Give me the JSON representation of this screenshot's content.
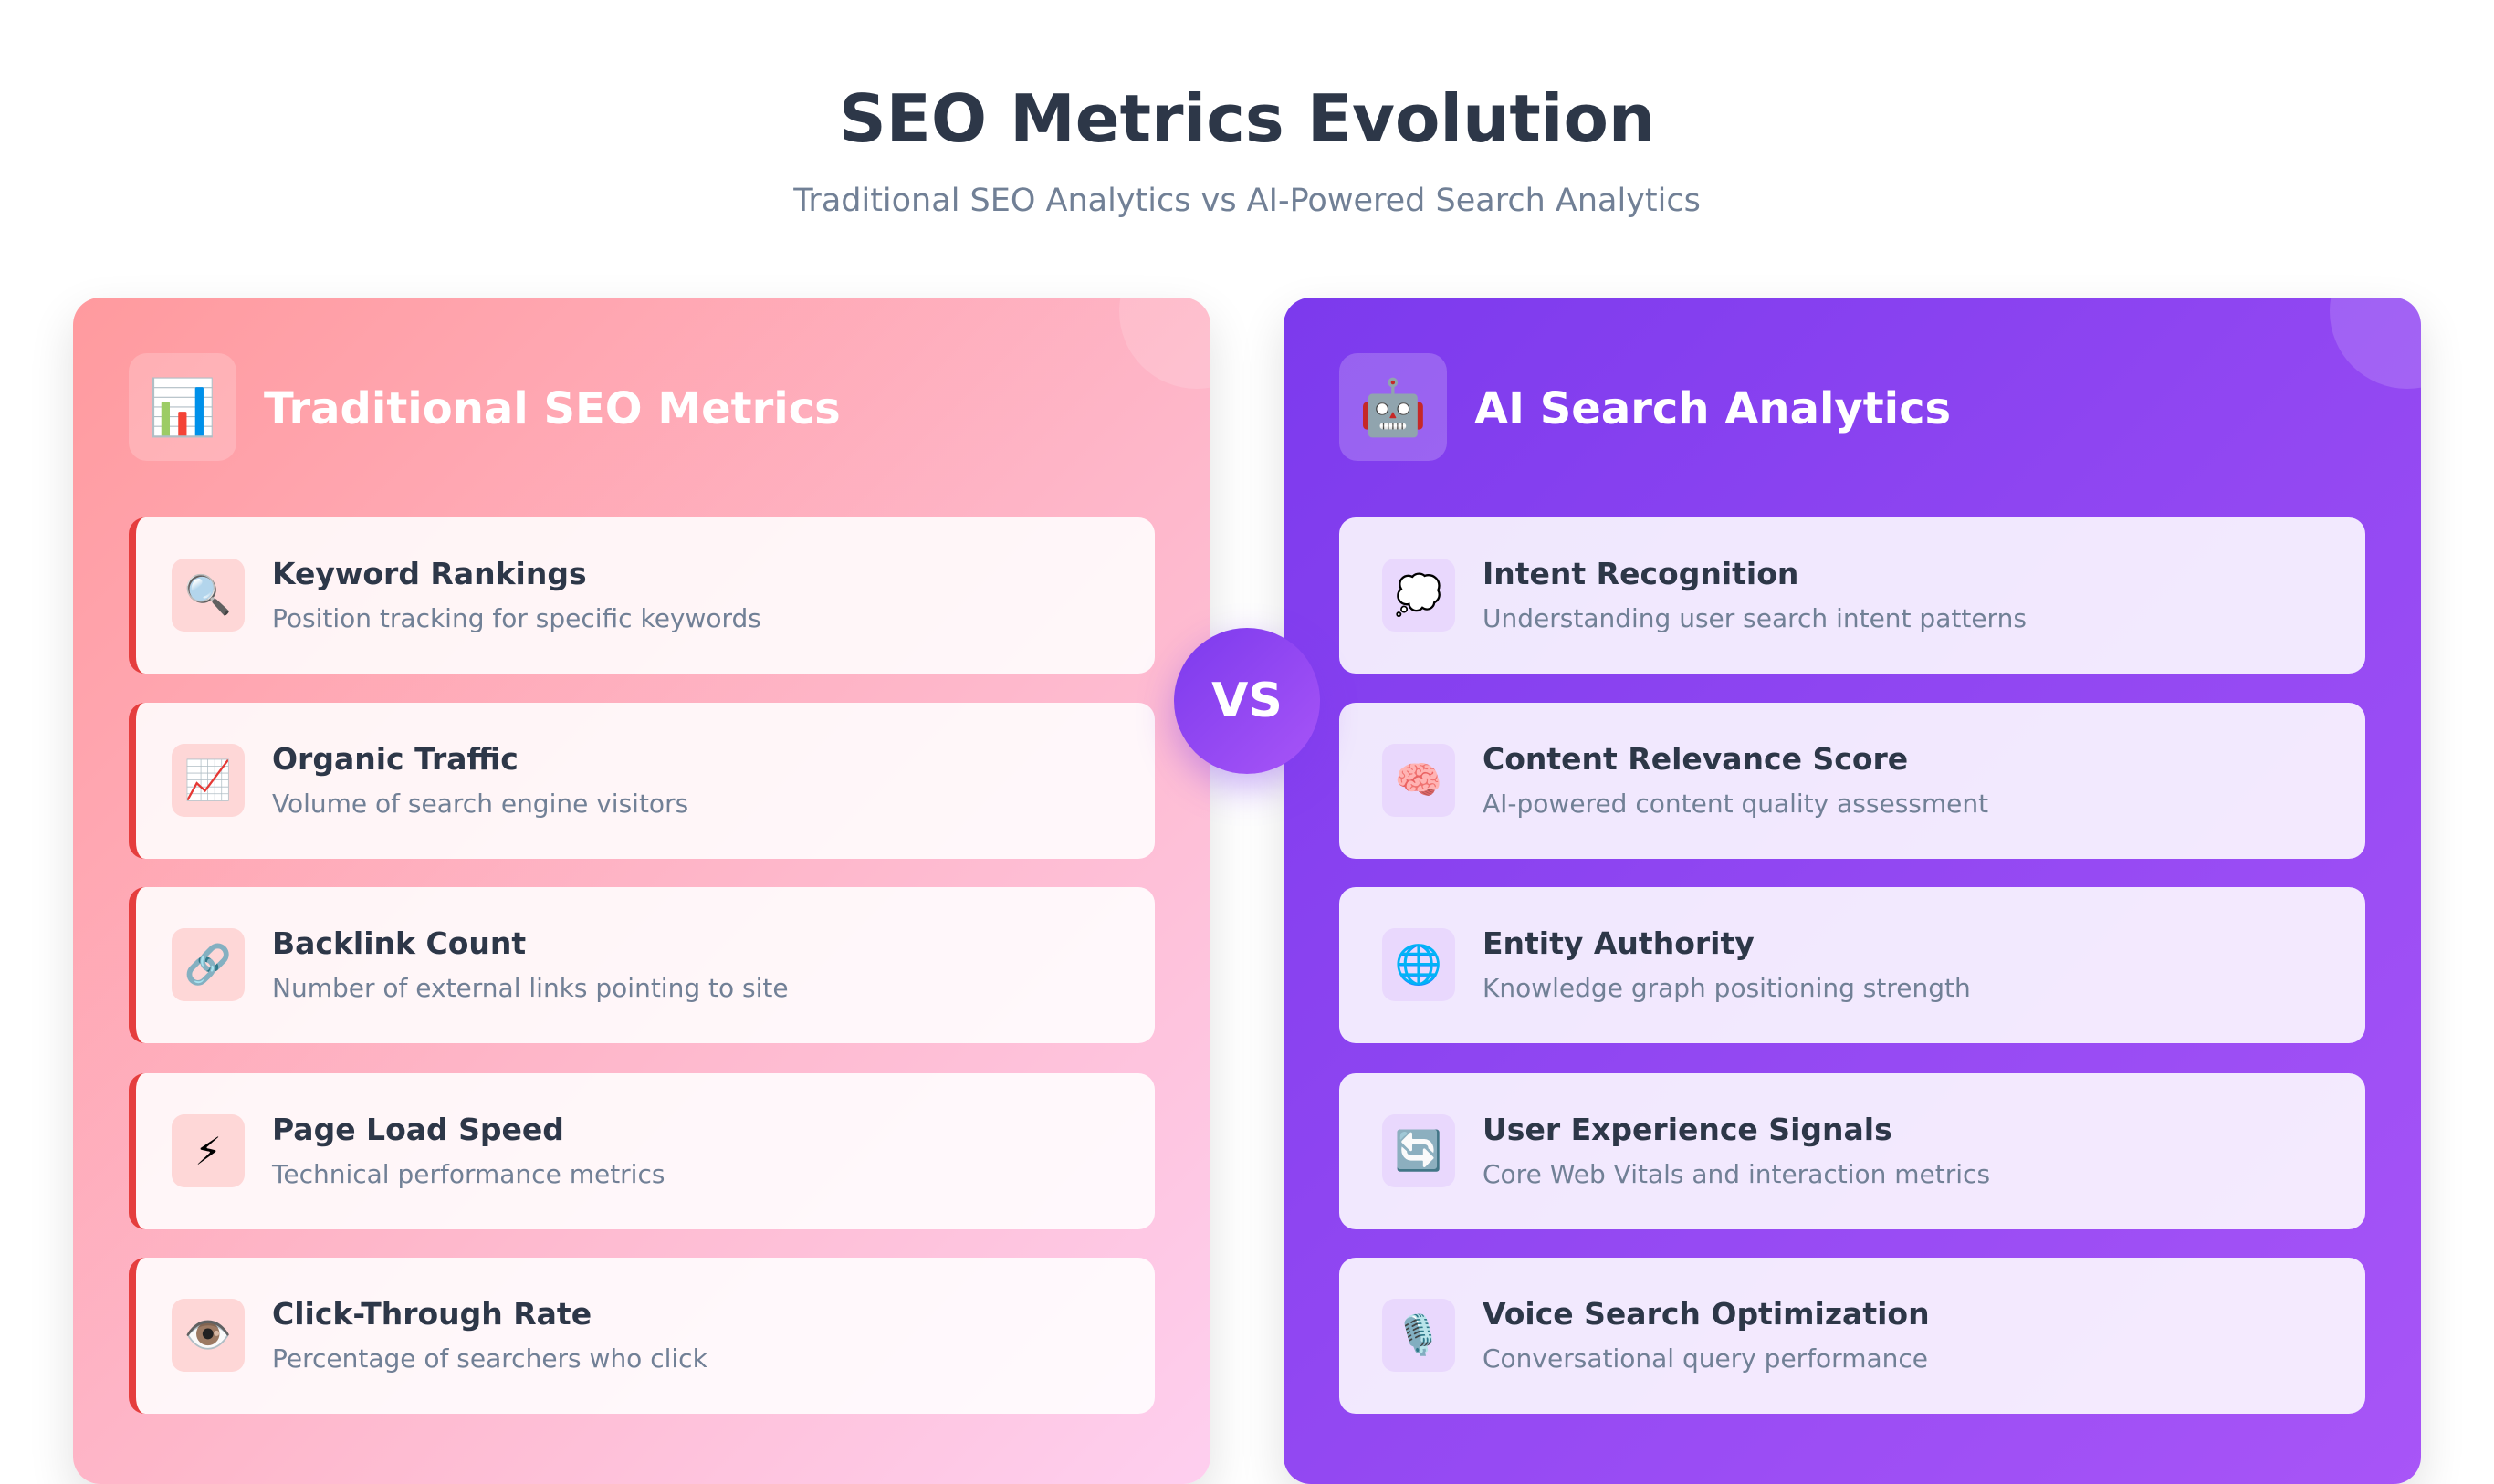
{
  "header": {
    "title": "SEO Metrics Evolution",
    "subtitle": "Traditional SEO Analytics vs AI-Powered Search Analytics"
  },
  "vs": "VS",
  "panels": [
    {
      "title": "Traditional SEO Metrics",
      "icon": "📊",
      "items": [
        {
          "icon": "🔍",
          "title": "Keyword Rankings",
          "description": "Position tracking for specific keywords"
        },
        {
          "icon": "📈",
          "title": "Organic Traffic",
          "description": "Volume of search engine visitors"
        },
        {
          "icon": "🔗",
          "title": "Backlink Count",
          "description": "Number of external links pointing to site"
        },
        {
          "icon": "⚡",
          "title": "Page Load Speed",
          "description": "Technical performance metrics"
        },
        {
          "icon": "👁️",
          "title": "Click-Through Rate",
          "description": "Percentage of searchers who click"
        }
      ]
    },
    {
      "title": "AI Search Analytics",
      "icon": "🤖",
      "items": [
        {
          "icon": "💭",
          "title": "Intent Recognition",
          "description": "Understanding user search intent patterns"
        },
        {
          "icon": "🧠",
          "title": "Content Relevance Score",
          "description": "AI-powered content quality assessment"
        },
        {
          "icon": "🌐",
          "title": "Entity Authority",
          "description": "Knowledge graph positioning strength"
        },
        {
          "icon": "🔄",
          "title": "User Experience Signals",
          "description": "Core Web Vitals and interaction metrics"
        },
        {
          "icon": "🎙️",
          "title": "Voice Search Optimization",
          "description": "Conversational query performance"
        }
      ]
    }
  ]
}
